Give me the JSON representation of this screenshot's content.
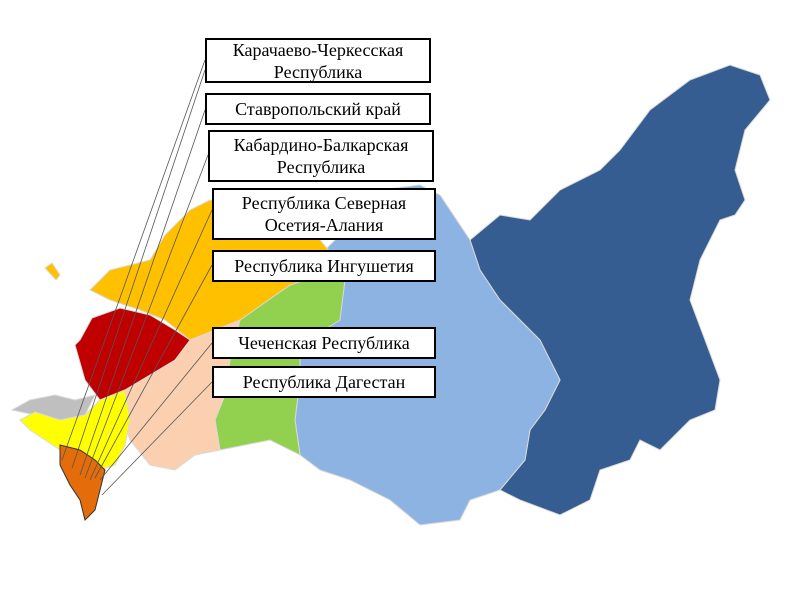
{
  "labels": [
    "Карачаево-Черкесская Республика",
    "Ставропольский край",
    "Кабардино-Балкарская Республика",
    "Республика Северная Осетия-Алания",
    "Республика Ингушетия",
    "Чеченская Республика",
    "Республика Дагестан"
  ],
  "region_colors": {
    "far_east": "#355D91",
    "siberia": "#8DB3E2",
    "ural": "#92D050",
    "volga": "#FAD0B0",
    "northwest": "#FFC000",
    "central": "#C00000",
    "crimea": "#BFBFBF",
    "south": "#FFFF00",
    "north_caucasus": "#E46C0A"
  }
}
